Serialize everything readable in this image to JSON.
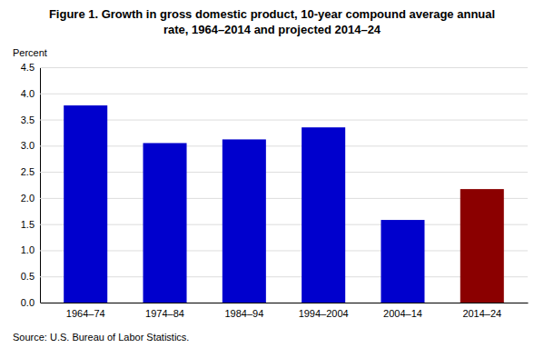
{
  "chart_data": {
    "type": "bar",
    "title": "Figure 1. Growth in gross domestic product, 10-year compound average annual",
    "subtitle": "rate, 1964–2014 and projected 2014–24",
    "ylabel": "Percent",
    "categories": [
      "1964–74",
      "1974–84",
      "1984–94",
      "1994–2004",
      "2004–14",
      "2014–24"
    ],
    "values": [
      3.77,
      3.05,
      3.12,
      3.35,
      1.58,
      2.17
    ],
    "colors": [
      "#0000CD",
      "#0000CD",
      "#0000CD",
      "#0000CD",
      "#0000CD",
      "#8B0000"
    ],
    "ylim": [
      0,
      4.5
    ],
    "yticks": [
      {
        "value": 0,
        "label": "0.0"
      },
      0.5,
      {
        "value": 1,
        "label": "1.0"
      },
      1.5,
      {
        "value": 2,
        "label": "2.0"
      },
      2.5,
      {
        "value": 3,
        "label": "3.0"
      },
      3.5,
      {
        "value": 4,
        "label": "4.0"
      },
      4.5
    ],
    "grid": true,
    "source": "Source: U.S. Bureau of Labor Statistics."
  }
}
